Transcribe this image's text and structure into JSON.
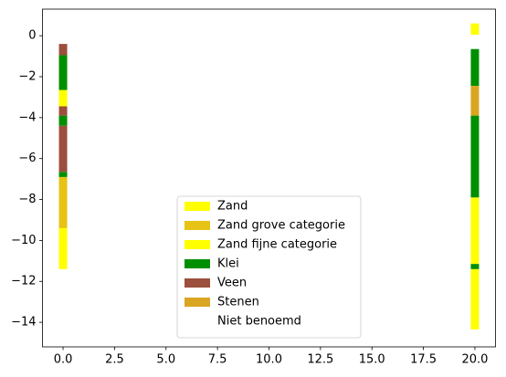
{
  "chart_data": {
    "type": "range-bar",
    "series": [
      {
        "name": "Zand",
        "color": "#ffff00",
        "x": [
          0,
          20,
          20,
          20
        ],
        "bottom": [
          -3.45,
          0.05,
          -11.15,
          -14.35
        ],
        "top": [
          -2.65,
          0.6,
          -7.9,
          -11.4
        ]
      },
      {
        "name": "Zand grove categorie",
        "color": "#e6c314",
        "x": [
          0
        ],
        "bottom": [
          -9.4
        ],
        "top": [
          -6.9
        ]
      },
      {
        "name": "Zand fijne categorie",
        "color": "#ffff00",
        "x": [
          0
        ],
        "bottom": [
          -11.4
        ],
        "top": [
          -9.4
        ]
      },
      {
        "name": "Klei",
        "color": "#008f00",
        "x": [
          0,
          0,
          0,
          20,
          20,
          20
        ],
        "bottom": [
          -2.65,
          -4.4,
          -6.9,
          -2.45,
          -7.9,
          -11.4
        ],
        "top": [
          -0.95,
          -3.9,
          -6.65,
          -0.65,
          -3.9,
          -11.15
        ]
      },
      {
        "name": "Veen",
        "color": "#9c4f3c",
        "x": [
          0,
          0,
          0
        ],
        "bottom": [
          -0.95,
          -3.9,
          -6.65
        ],
        "top": [
          -0.4,
          -3.45,
          -4.4
        ]
      },
      {
        "name": "Stenen",
        "color": "#daa520",
        "x": [
          20
        ],
        "bottom": [
          -3.9
        ],
        "top": [
          -2.45
        ]
      },
      {
        "name": "Niet benoemd",
        "color": "#ffffff",
        "x": [],
        "bottom": [],
        "top": []
      }
    ],
    "xlim": [
      -1,
      21
    ],
    "xticks": [
      {
        "value": 0,
        "label": "0.0"
      },
      2.5,
      {
        "value": 5,
        "label": "5.0"
      },
      7.5,
      {
        "value": 10,
        "label": "10.0"
      },
      12.5,
      {
        "value": 15,
        "label": "15.0"
      },
      17.5,
      {
        "value": 20,
        "label": "20.0"
      }
    ],
    "ylim": [
      -15.2,
      1.3
    ],
    "yticks": [
      0,
      {
        "value": -2,
        "label": "−2"
      },
      {
        "value": -4,
        "label": "−4"
      },
      {
        "value": -6,
        "label": "−6"
      },
      {
        "value": -8,
        "label": "−8"
      },
      {
        "value": -10,
        "label": "−10"
      },
      {
        "value": -12,
        "label": "−12"
      },
      {
        "value": -14,
        "label": "−14"
      }
    ],
    "legend": "lower center"
  }
}
